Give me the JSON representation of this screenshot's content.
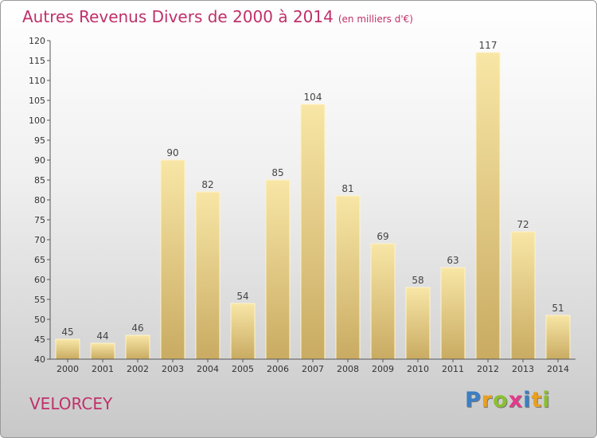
{
  "title": "Autres Revenus Divers de 2000 à 2014",
  "unit": "(en milliers d'€)",
  "commune": "VELORCEY",
  "logo": {
    "text": "Proxiti",
    "letter_colors": [
      "#3a7fc4",
      "#e8a020",
      "#8bbf30",
      "#e23a8a",
      "#3a7fc4",
      "#e8a020",
      "#8bbf30"
    ]
  },
  "colors": {
    "title": "#c0306a",
    "bar_light": "#f7e3a2",
    "bar_dark": "#c8aa60",
    "axis": "#555555"
  },
  "chart_data": {
    "type": "bar",
    "title": "Autres Revenus Divers de 2000 à 2014",
    "subtitle": "(en milliers d'€)",
    "categories": [
      "2000",
      "2001",
      "2002",
      "2003",
      "2004",
      "2005",
      "2006",
      "2007",
      "2008",
      "2009",
      "2010",
      "2011",
      "2012",
      "2013",
      "2014"
    ],
    "values": [
      45,
      44,
      46,
      90,
      82,
      54,
      85,
      104,
      81,
      69,
      58,
      63,
      117,
      72,
      51
    ],
    "ylim": [
      40,
      120
    ],
    "yticks": [
      40,
      45,
      50,
      55,
      60,
      65,
      70,
      75,
      80,
      85,
      90,
      95,
      100,
      105,
      110,
      115,
      120
    ],
    "grid": false,
    "xlabel": "",
    "ylabel": ""
  }
}
